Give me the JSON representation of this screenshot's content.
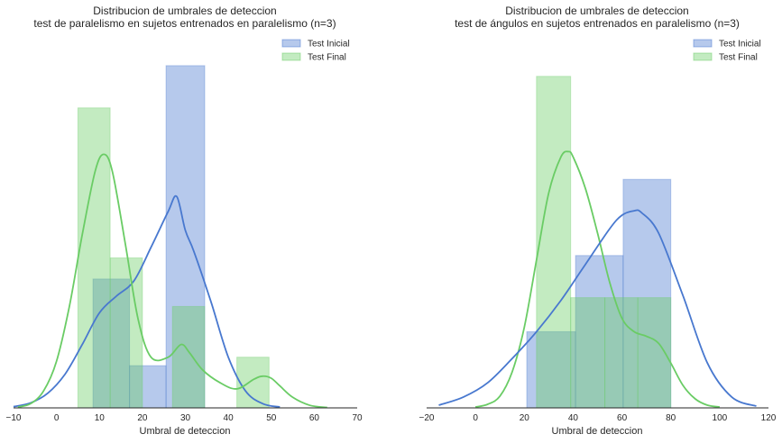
{
  "chart_data": [
    {
      "type": "histogram",
      "title": "Distribucion de umbrales de deteccion\ntest de paralelismo en sujetos entrenados en paralelismo (n=3)",
      "title_lines": [
        "Distribucion de umbrales de deteccion",
        "test de paralelismo en sujetos entrenados en paralelismo (n=3)"
      ],
      "xlabel": "Umbral de deteccion",
      "ylabel": "",
      "xlim": [
        -10,
        70
      ],
      "ylim": [
        0,
        0.088
      ],
      "xticks": [
        -10,
        0,
        10,
        20,
        30,
        40,
        50,
        60,
        70
      ],
      "xtick_labels": [
        "−10",
        "0",
        "10",
        "20",
        "30",
        "40",
        "50",
        "60",
        "70"
      ],
      "grid": false,
      "legend_position": "top-right",
      "series": [
        {
          "name": "Test Inicial",
          "color": "#4878CF",
          "bins": [
            [
              8.5,
              17
            ],
            [
              17,
              25.5
            ],
            [
              25.5,
              34.5
            ]
          ],
          "densities": [
            0.0305,
            0.01,
            0.081
          ],
          "kde_x": [
            -10,
            -6,
            -2,
            2,
            6,
            10,
            14,
            18,
            22,
            26,
            28,
            30,
            32,
            36,
            40,
            44,
            48,
            52
          ],
          "kde_y": [
            0.0003,
            0.0012,
            0.0035,
            0.008,
            0.015,
            0.0225,
            0.0265,
            0.03,
            0.038,
            0.0465,
            0.05,
            0.042,
            0.037,
            0.025,
            0.012,
            0.004,
            0.001,
            0.0002
          ]
        },
        {
          "name": "Test Final",
          "color": "#6ACC65",
          "bins": [
            [
              5,
              12.5
            ],
            [
              12.5,
              20
            ],
            [
              27,
              34.5
            ],
            [
              42,
              49.5
            ]
          ],
          "densities": [
            0.071,
            0.0355,
            0.024,
            0.012
          ],
          "kde_x": [
            -9,
            -6,
            -3,
            0,
            3,
            6,
            9,
            11,
            13,
            16,
            19,
            22,
            26,
            29,
            31,
            34,
            38,
            42,
            46,
            48,
            50,
            52,
            55,
            59,
            63
          ],
          "kde_y": [
            0.0002,
            0.001,
            0.004,
            0.011,
            0.024,
            0.041,
            0.056,
            0.06,
            0.056,
            0.039,
            0.021,
            0.012,
            0.012,
            0.015,
            0.013,
            0.009,
            0.006,
            0.0045,
            0.0068,
            0.0075,
            0.007,
            0.0052,
            0.0025,
            0.0006,
            0.0001
          ]
        }
      ]
    },
    {
      "type": "histogram",
      "title": "Distribucion de umbrales de deteccion\ntest de ángulos en sujetos entrenados en paralelismo (n=3)",
      "title_lines": [
        "Distribucion de umbrales de deteccion",
        "test de ángulos en sujetos entrenados en paralelismo (n=3)"
      ],
      "xlabel": "Umbral de deteccion",
      "ylabel": "",
      "xlim": [
        -20,
        120
      ],
      "ylim": [
        0,
        0.0415
      ],
      "xticks": [
        -20,
        0,
        20,
        40,
        60,
        80,
        100,
        120
      ],
      "xtick_labels": [
        "−20",
        "0",
        "20",
        "40",
        "60",
        "80",
        "100",
        "120"
      ],
      "grid": false,
      "legend_position": "top-right",
      "series": [
        {
          "name": "Test Inicial",
          "color": "#4878CF",
          "bins": [
            [
              21,
              41
            ],
            [
              41,
              60.5
            ],
            [
              60.5,
              80
            ]
          ],
          "densities": [
            0.0085,
            0.017,
            0.0255
          ],
          "kde_x": [
            -15,
            -5,
            5,
            15,
            25,
            35,
            45,
            55,
            60,
            65,
            68,
            75,
            85,
            95,
            105,
            115
          ],
          "kde_y": [
            0.0003,
            0.0012,
            0.0028,
            0.0055,
            0.0085,
            0.012,
            0.016,
            0.02,
            0.0215,
            0.022,
            0.0218,
            0.0195,
            0.0125,
            0.005,
            0.0012,
            0.0002
          ],
          "draw_after_final": true
        },
        {
          "name": "Test Final",
          "color": "#6ACC65",
          "bins": [
            [
              25,
              39
            ],
            [
              39,
              53
            ],
            [
              53,
              66.5
            ],
            [
              66.5,
              80
            ]
          ],
          "densities": [
            0.037,
            0.0123,
            0.0123,
            0.0123
          ],
          "kde_x": [
            0,
            5,
            10,
            15,
            20,
            25,
            30,
            35,
            38,
            40,
            45,
            50,
            55,
            60,
            65,
            70,
            75,
            80,
            85,
            90,
            95,
            100
          ],
          "kde_y": [
            0.0001,
            0.0004,
            0.0013,
            0.004,
            0.009,
            0.0165,
            0.024,
            0.028,
            0.0286,
            0.028,
            0.0245,
            0.0195,
            0.014,
            0.01,
            0.0085,
            0.008,
            0.0072,
            0.005,
            0.0025,
            0.001,
            0.0003,
            0.0001
          ]
        }
      ]
    }
  ]
}
